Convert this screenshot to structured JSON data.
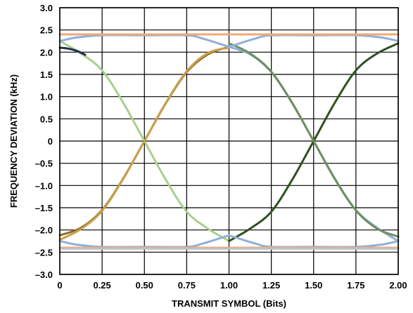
{
  "chart_data": {
    "type": "line",
    "title": "",
    "xlabel": "TRANSMIT SYMBOL (Bits)",
    "ylabel": "FREQUENCY DEVIATION (kHz)",
    "xlim": [
      0,
      2
    ],
    "ylim": [
      -3,
      3
    ],
    "x_ticks": [
      {
        "value": 0,
        "label": "0"
      },
      {
        "value": 0.25,
        "label": "0.25"
      },
      {
        "value": 0.5,
        "label": "0.50"
      },
      {
        "value": 0.75,
        "label": "0.75"
      },
      {
        "value": 1,
        "label": "1.00"
      },
      {
        "value": 1.25,
        "label": "1.25"
      },
      {
        "value": 1.5,
        "label": "1.50"
      },
      {
        "value": 1.75,
        "label": "1.75"
      },
      {
        "value": 2,
        "label": "2.00"
      }
    ],
    "y_ticks": [
      {
        "value": 3,
        "label": "3.0"
      },
      {
        "value": 2.5,
        "label": "2.5"
      },
      {
        "value": 2,
        "label": "2.0"
      },
      {
        "value": 1.5,
        "label": "1.5"
      },
      {
        "value": 1,
        "label": "1.0"
      },
      {
        "value": 0.5,
        "label": "0.5"
      },
      {
        "value": 0,
        "label": "0"
      },
      {
        "value": -0.5,
        "label": "–0.5"
      },
      {
        "value": -1,
        "label": "–1.0"
      },
      {
        "value": -1.5,
        "label": "–1.5"
      },
      {
        "value": -2,
        "label": "–2.0"
      },
      {
        "value": -2.5,
        "label": "–2.5"
      },
      {
        "value": -3,
        "label": "–3.0"
      }
    ],
    "grid": true,
    "series": [
      {
        "color": "#a8d08d",
        "x": [
          0,
          0.125,
          0.25,
          0.375,
          0.5,
          0.625,
          0.75,
          0.875,
          1.0
        ],
        "y": [
          2.25,
          1.97,
          1.59,
          0.86,
          0,
          -0.86,
          -1.59,
          -1.97,
          -2.25
        ]
      },
      {
        "color": "#8d6e1f",
        "x": [
          0,
          0.125,
          0.25,
          0.375,
          0.5,
          0.625,
          0.75,
          0.875,
          1.0
        ],
        "y": [
          -2.12,
          -1.95,
          -1.55,
          -0.84,
          0,
          0.84,
          1.55,
          1.95,
          2.12
        ]
      },
      {
        "color": "#c8a050",
        "x": [
          0,
          0.125,
          0.25,
          0.375,
          0.5,
          0.625,
          0.75,
          0.875,
          1.0
        ],
        "y": [
          -2.22,
          -1.98,
          -1.57,
          -0.85,
          0,
          0.85,
          1.57,
          1.98,
          2.1
        ]
      },
      {
        "color": "#2f5020",
        "x": [
          1.0,
          1.125,
          1.25,
          1.375,
          1.5,
          1.625,
          1.75,
          1.875,
          2.0
        ],
        "y": [
          -2.25,
          -1.97,
          -1.59,
          -0.86,
          0,
          0.86,
          1.59,
          1.97,
          2.2
        ]
      },
      {
        "color": "#8fb0d8",
        "x": [
          1.0,
          1.125,
          1.25,
          1.375,
          1.5,
          1.625,
          1.75,
          1.875,
          2.0
        ],
        "y": [
          2.12,
          1.95,
          1.55,
          0.84,
          0,
          -0.84,
          -1.55,
          -1.95,
          -2.25
        ]
      },
      {
        "color": "#6f8f5f",
        "x": [
          1.0,
          1.125,
          1.25,
          1.375,
          1.5,
          1.625,
          1.75,
          1.875,
          2.0
        ],
        "y": [
          2.2,
          1.97,
          1.56,
          0.85,
          0,
          -0.85,
          -1.56,
          -1.97,
          -2.15
        ]
      },
      {
        "color": "#8fb0d8",
        "x": [
          0,
          0.1,
          0.25,
          0.5,
          0.75,
          0.85,
          1.0
        ],
        "y": [
          2.25,
          2.33,
          2.38,
          2.38,
          2.38,
          2.3,
          2.12
        ]
      },
      {
        "color": "#8fb0d8",
        "x": [
          1.0,
          1.15,
          1.25,
          1.5,
          1.75,
          1.9,
          2.0
        ],
        "y": [
          2.12,
          2.3,
          2.38,
          2.38,
          2.38,
          2.33,
          2.25
        ]
      },
      {
        "color": "#f0a878",
        "x": [
          0,
          0.25,
          0.5,
          0.75,
          1.0,
          1.25,
          1.5,
          1.75,
          2.0
        ],
        "y": [
          2.4,
          2.4,
          2.4,
          2.4,
          2.4,
          2.4,
          2.4,
          2.4,
          2.4
        ]
      },
      {
        "color": "#1f3050",
        "x": [
          0,
          0.05,
          0.1,
          0.15
        ],
        "y": [
          2.1,
          2.08,
          2.03,
          1.94
        ]
      },
      {
        "color": "#8fb0d8",
        "x": [
          0,
          0.1,
          0.25,
          0.5,
          0.75,
          0.85,
          1.0
        ],
        "y": [
          -2.25,
          -2.33,
          -2.38,
          -2.38,
          -2.38,
          -2.3,
          -2.12
        ]
      },
      {
        "color": "#8fb0d8",
        "x": [
          1.0,
          1.15,
          1.25,
          1.5,
          1.75,
          1.9,
          2.0
        ],
        "y": [
          -2.12,
          -2.3,
          -2.38,
          -2.38,
          -2.38,
          -2.33,
          -2.25
        ]
      },
      {
        "color": "#f0a878",
        "x": [
          0,
          0.25,
          0.5,
          0.75,
          1.0,
          1.25,
          1.5,
          1.75,
          2.0
        ],
        "y": [
          -2.4,
          -2.4,
          -2.4,
          -2.4,
          -2.4,
          -2.4,
          -2.4,
          -2.4,
          -2.4
        ]
      },
      {
        "color": "#c0c0c0",
        "x": [
          0,
          0.25,
          0.5,
          0.75,
          1.0,
          1.25,
          1.5,
          1.75,
          2.0
        ],
        "y": [
          -2.42,
          -2.42,
          -2.42,
          -2.42,
          -2.42,
          -2.42,
          -2.42,
          -2.42,
          -2.42
        ]
      }
    ]
  }
}
